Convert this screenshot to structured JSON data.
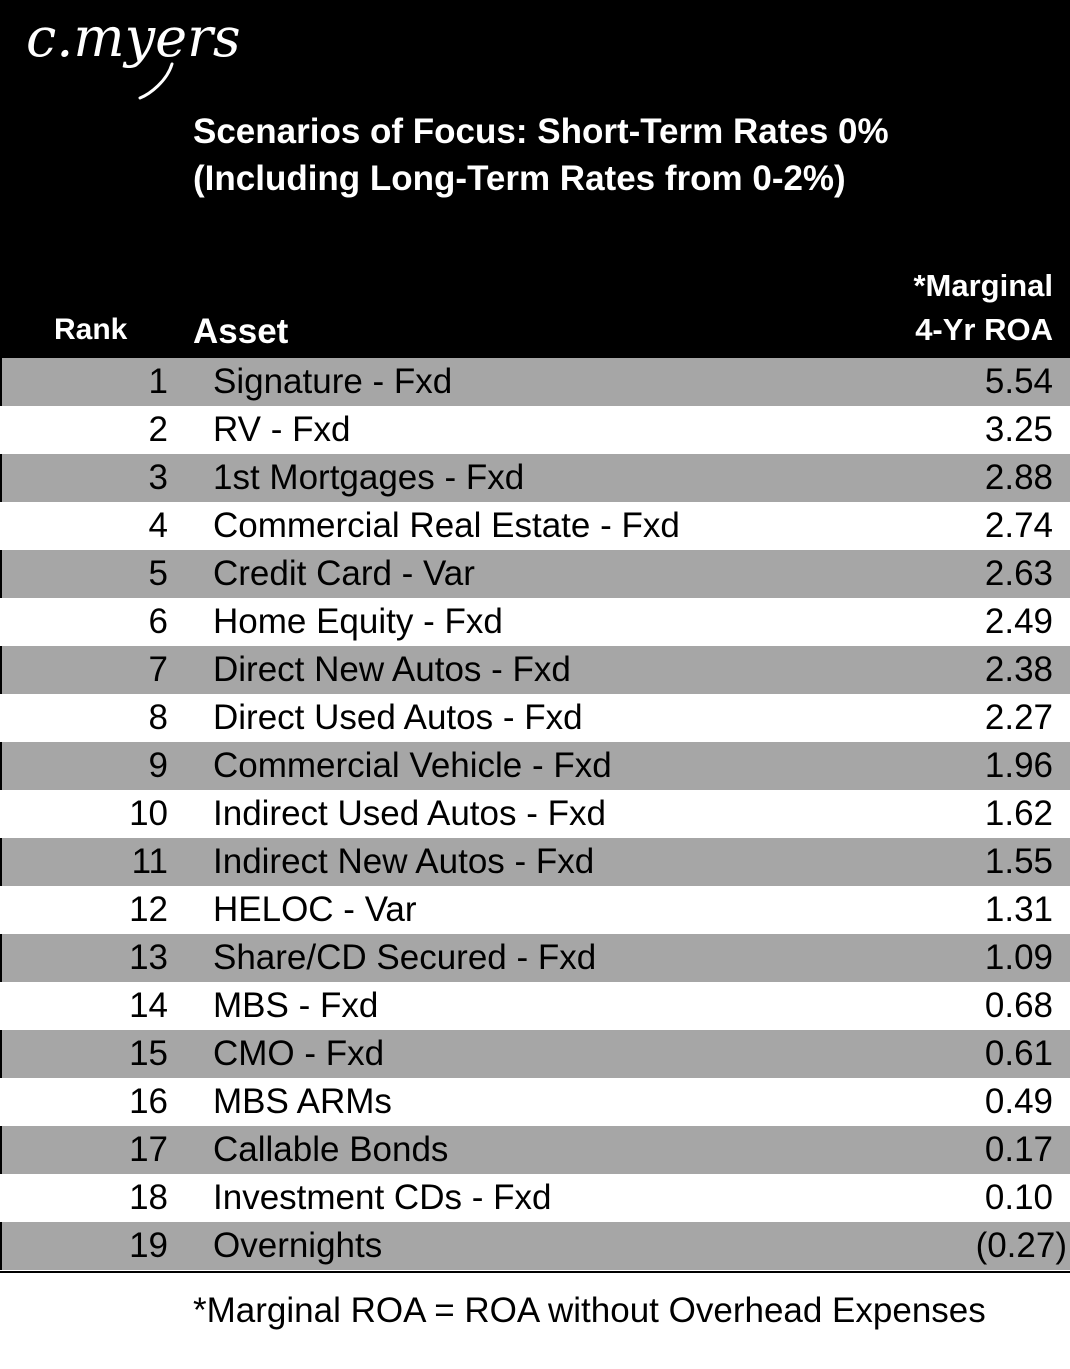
{
  "header": {
    "logo": "c.myers",
    "title_lines": [
      "Scenarios of Focus:  Short-Term Rates 0%",
      "(Including Long-Term Rates from 0-2%)"
    ],
    "columns": {
      "rank": "Rank",
      "asset": "Asset",
      "roa_lines": [
        "*Marginal",
        "4-Yr ROA"
      ]
    }
  },
  "rows": [
    {
      "rank": "1",
      "asset": "Signature - Fxd",
      "roa": "5.54"
    },
    {
      "rank": "2",
      "asset": "RV - Fxd",
      "roa": "3.25"
    },
    {
      "rank": "3",
      "asset": "1st Mortgages - Fxd",
      "roa": "2.88"
    },
    {
      "rank": "4",
      "asset": "Commercial Real Estate - Fxd",
      "roa": "2.74"
    },
    {
      "rank": "5",
      "asset": "Credit Card - Var",
      "roa": "2.63"
    },
    {
      "rank": "6",
      "asset": "Home Equity - Fxd",
      "roa": "2.49"
    },
    {
      "rank": "7",
      "asset": "Direct New Autos - Fxd",
      "roa": "2.38"
    },
    {
      "rank": "8",
      "asset": "Direct Used Autos - Fxd",
      "roa": "2.27"
    },
    {
      "rank": "9",
      "asset": "Commercial Vehicle - Fxd",
      "roa": "1.96"
    },
    {
      "rank": "10",
      "asset": "Indirect Used Autos - Fxd",
      "roa": "1.62"
    },
    {
      "rank": "11",
      "asset": "Indirect New Autos - Fxd",
      "roa": "1.55"
    },
    {
      "rank": "12",
      "asset": "HELOC - Var",
      "roa": "1.31"
    },
    {
      "rank": "13",
      "asset": "Share/CD Secured - Fxd",
      "roa": "1.09"
    },
    {
      "rank": "14",
      "asset": "MBS - Fxd",
      "roa": "0.68"
    },
    {
      "rank": "15",
      "asset": "CMO - Fxd",
      "roa": "0.61"
    },
    {
      "rank": "16",
      "asset": "MBS ARMs",
      "roa": "0.49"
    },
    {
      "rank": "17",
      "asset": "Callable Bonds",
      "roa": "0.17"
    },
    {
      "rank": "18",
      "asset": "Investment CDs - Fxd",
      "roa": "0.10"
    },
    {
      "rank": "19",
      "asset": "Overnights",
      "roa": "(0.27)"
    }
  ],
  "footnote": "*Marginal ROA = ROA without Overhead Expenses",
  "colors": {
    "header_bg": "#000000",
    "header_text": "#ffffff",
    "shaded_row": "#a6a6a6",
    "plain_row": "#ffffff"
  }
}
